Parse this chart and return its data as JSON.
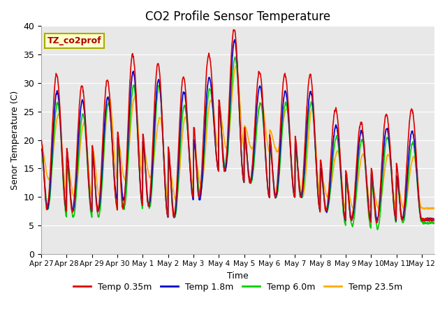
{
  "title": "CO2 Profile Sensor Temperature",
  "ylabel": "Senor Temperature (C)",
  "xlabel": "Time",
  "annotation": "TZ_co2prof",
  "ylim": [
    0,
    40
  ],
  "bg_color": "#e8e8e8",
  "fig_color": "#ffffff",
  "colors": {
    "0.35m": "#dd0000",
    "1.8m": "#0000cc",
    "6.0m": "#00cc00",
    "23.5m": "#ffaa00"
  },
  "legend_labels": [
    "Temp 0.35m",
    "Temp 1.8m",
    "Temp 6.0m",
    "Temp 23.5m"
  ],
  "x_tick_labels": [
    "Apr 27",
    "Apr 28",
    "Apr 29",
    "Apr 30",
    "May 1",
    "May 2",
    "May 3",
    "May 4",
    "May 5",
    "May 6",
    "May 7",
    "May 8",
    "May 9",
    "May 10",
    "May 11",
    "May 12"
  ],
  "peaks_035": [
    31.5,
    29.5,
    30.5,
    35.0,
    33.5,
    31.0,
    35.0,
    39.5,
    32.0,
    31.5,
    31.5,
    25.5,
    23.0,
    24.5,
    25.5
  ],
  "troughs_035": [
    8.0,
    7.5,
    7.5,
    8.0,
    8.5,
    6.5,
    10.0,
    14.5,
    12.5,
    10.0,
    10.0,
    7.5,
    6.0,
    5.5,
    6.0
  ],
  "peaks_18": [
    28.5,
    27.0,
    27.5,
    32.0,
    30.5,
    28.5,
    31.0,
    37.5,
    29.5,
    28.5,
    28.5,
    22.5,
    21.5,
    22.0,
    21.5
  ],
  "troughs_18": [
    8.0,
    7.5,
    7.5,
    9.5,
    8.5,
    6.5,
    9.5,
    14.5,
    12.5,
    10.0,
    10.0,
    7.5,
    6.0,
    6.0,
    6.0
  ],
  "peaks_60": [
    26.5,
    24.5,
    26.5,
    29.5,
    29.5,
    26.0,
    29.0,
    34.5,
    26.5,
    26.5,
    26.5,
    20.5,
    20.0,
    20.5,
    19.5
  ],
  "troughs_60": [
    8.0,
    6.5,
    6.5,
    8.0,
    8.0,
    6.5,
    10.5,
    15.0,
    12.5,
    10.0,
    10.0,
    7.5,
    5.0,
    4.5,
    5.5
  ],
  "peaks_235": [
    24.5,
    23.0,
    27.5,
    27.5,
    24.0,
    24.0,
    27.0,
    33.0,
    26.5,
    25.5,
    25.5,
    18.0,
    17.5,
    17.5,
    17.0
  ],
  "troughs_235": [
    13.0,
    10.0,
    10.0,
    13.0,
    13.5,
    9.5,
    12.0,
    18.5,
    18.5,
    18.0,
    10.0,
    10.0,
    8.0,
    8.0,
    8.0
  ],
  "n_points": 1500
}
